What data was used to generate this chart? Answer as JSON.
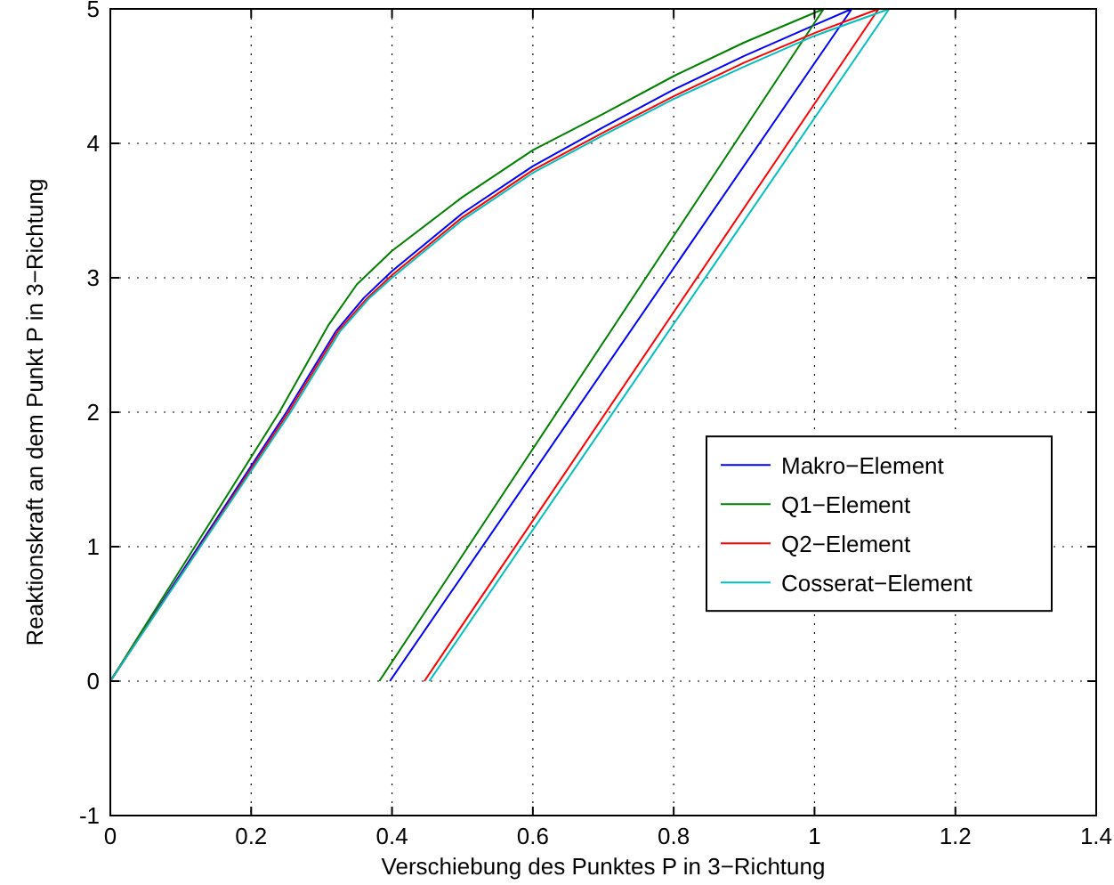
{
  "chart_data": {
    "type": "line",
    "xlabel": "Verschiebung des Punktes P in 3−Richtung",
    "ylabel": "Reaktionskraft an dem Punkt P in 3−Richtung",
    "xlim": [
      0,
      1.4
    ],
    "ylim": [
      -1,
      5
    ],
    "xticks": [
      0,
      0.2,
      0.4,
      0.6,
      0.8,
      1,
      1.2,
      1.4
    ],
    "yticks": [
      -1,
      0,
      1,
      2,
      3,
      4,
      5
    ],
    "grid": true,
    "legend": "right",
    "line_style": "solid",
    "marker": "none",
    "series": [
      {
        "name": "Makro−Element",
        "color": "#0000ff",
        "x": [
          0,
          0.125,
          0.25,
          0.32,
          0.36,
          0.4,
          0.5,
          0.6,
          0.7,
          0.8,
          0.9,
          1.0,
          1.053,
          0.397
        ],
        "values": [
          0,
          1,
          2,
          2.6,
          2.85,
          3.05,
          3.48,
          3.83,
          4.12,
          4.4,
          4.65,
          4.88,
          5,
          0
        ]
      },
      {
        "name": "Q1−Element",
        "color": "#008000",
        "x": [
          0,
          0.12,
          0.24,
          0.31,
          0.35,
          0.4,
          0.5,
          0.6,
          0.7,
          0.8,
          0.9,
          1.013,
          0.382
        ],
        "values": [
          0,
          1,
          2,
          2.65,
          2.95,
          3.2,
          3.6,
          3.95,
          4.22,
          4.5,
          4.75,
          5,
          0
        ]
      },
      {
        "name": "Q2−Element",
        "color": "#ff0000",
        "x": [
          0,
          0.127,
          0.253,
          0.323,
          0.365,
          0.4,
          0.5,
          0.6,
          0.7,
          0.8,
          0.9,
          1.0,
          1.091,
          0.446
        ],
        "values": [
          0,
          1,
          2,
          2.6,
          2.85,
          3.02,
          3.45,
          3.8,
          4.08,
          4.35,
          4.6,
          4.82,
          5,
          0
        ]
      },
      {
        "name": "Cosserat−Element",
        "color": "#00bfbf",
        "x": [
          0,
          0.128,
          0.256,
          0.326,
          0.368,
          0.4,
          0.5,
          0.6,
          0.7,
          0.8,
          0.9,
          1.0,
          1.106,
          0.453
        ],
        "values": [
          0,
          1,
          2,
          2.6,
          2.85,
          3.0,
          3.43,
          3.78,
          4.06,
          4.33,
          4.57,
          4.8,
          5,
          0
        ]
      }
    ]
  }
}
